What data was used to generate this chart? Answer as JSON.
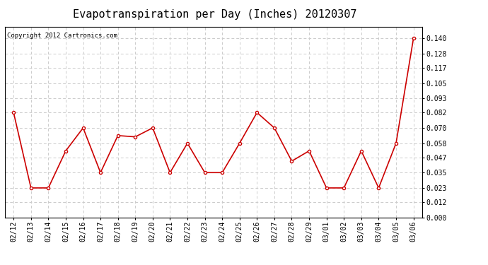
{
  "title": "Evapotranspiration per Day (Inches) 20120307",
  "copyright": "Copyright 2012 Cartronics.com",
  "dates": [
    "02/12",
    "02/13",
    "02/14",
    "02/15",
    "02/16",
    "02/17",
    "02/18",
    "02/19",
    "02/20",
    "02/21",
    "02/22",
    "02/23",
    "02/24",
    "02/25",
    "02/26",
    "02/27",
    "02/28",
    "02/29",
    "03/01",
    "03/02",
    "03/03",
    "03/04",
    "03/05",
    "03/06"
  ],
  "values": [
    0.082,
    0.023,
    0.023,
    0.052,
    0.07,
    0.035,
    0.064,
    0.063,
    0.07,
    0.035,
    0.058,
    0.035,
    0.035,
    0.058,
    0.082,
    0.07,
    0.044,
    0.052,
    0.023,
    0.023,
    0.052,
    0.023,
    0.058,
    0.14
  ],
  "ylim": [
    0.0,
    0.1494
  ],
  "yticks": [
    0.0,
    0.012,
    0.023,
    0.035,
    0.047,
    0.058,
    0.07,
    0.082,
    0.093,
    0.105,
    0.117,
    0.128,
    0.14
  ],
  "line_color": "#cc0000",
  "marker": "o",
  "marker_size": 3,
  "bg_color": "#ffffff",
  "grid_color": "#cccccc",
  "title_fontsize": 11,
  "copyright_fontsize": 6.5,
  "tick_fontsize": 7,
  "ytick_fontsize": 7
}
